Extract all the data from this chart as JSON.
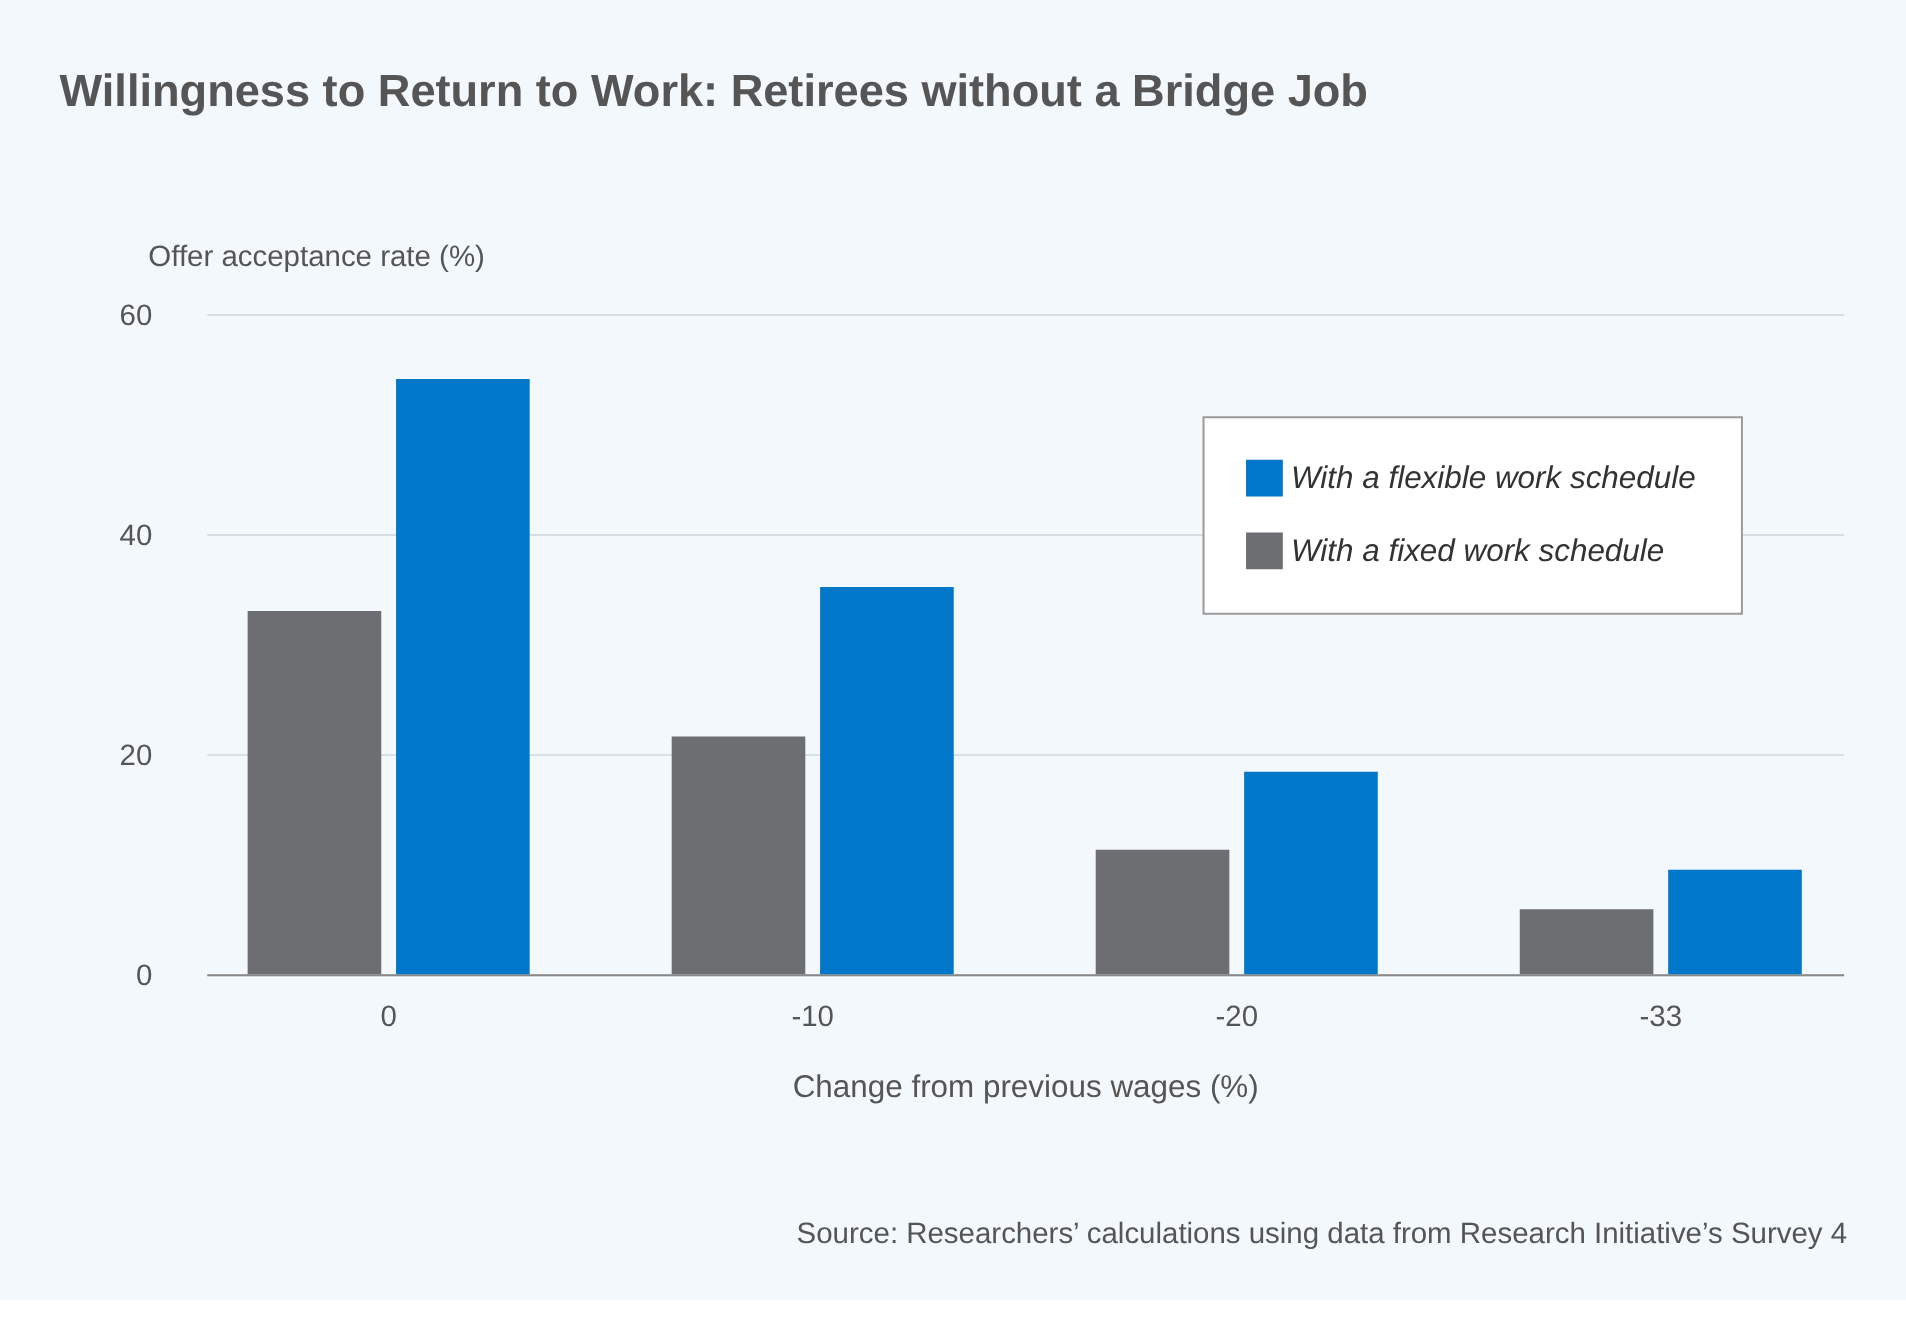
{
  "chart_data": {
    "type": "bar",
    "title": "Willingness to Return to Work: Retirees without a Bridge Job",
    "xlabel": "Change from previous wages (%)",
    "ylabel": "Offer acceptance rate (%)",
    "categories": [
      "0",
      "-10",
      "-20",
      "-33"
    ],
    "series": [
      {
        "name": "With a flexible work schedule",
        "color": "#0077c8",
        "values": [
          54.1,
          35.2,
          18.4,
          9.5
        ]
      },
      {
        "name": "With a fixed work schedule",
        "color": "#6d6e71",
        "values": [
          33.0,
          21.6,
          11.3,
          5.9
        ]
      }
    ],
    "ylim": [
      0,
      60
    ],
    "yticks": [
      0,
      20,
      40,
      60
    ],
    "grid": "y",
    "legend": "top right",
    "annotations": [
      "Source: Researchers’ calculations using data from Research Initiative’s Survey 4"
    ]
  }
}
